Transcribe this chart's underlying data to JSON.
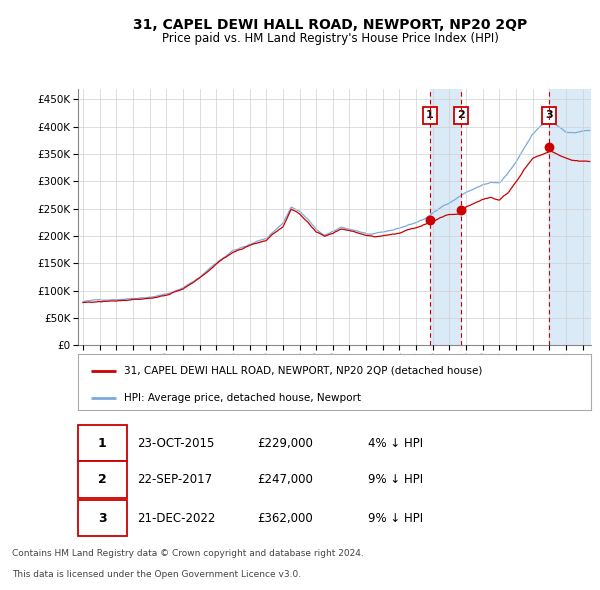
{
  "title": "31, CAPEL DEWI HALL ROAD, NEWPORT, NP20 2QP",
  "subtitle": "Price paid vs. HM Land Registry's House Price Index (HPI)",
  "legend_line1": "31, CAPEL DEWI HALL ROAD, NEWPORT, NP20 2QP (detached house)",
  "legend_line2": "HPI: Average price, detached house, Newport",
  "footer_line1": "Contains HM Land Registry data © Crown copyright and database right 2024.",
  "footer_line2": "This data is licensed under the Open Government Licence v3.0.",
  "transactions": [
    {
      "id": 1,
      "date": "23-OCT-2015",
      "price": 229000,
      "pct": "4% ↓ HPI",
      "x_year": 2015.81
    },
    {
      "id": 2,
      "date": "22-SEP-2017",
      "price": 247000,
      "pct": "9% ↓ HPI",
      "x_year": 2017.72
    },
    {
      "id": 3,
      "date": "21-DEC-2022",
      "price": 362000,
      "pct": "9% ↓ HPI",
      "x_year": 2022.97
    }
  ],
  "hpi_color": "#7aabdc",
  "price_color": "#cc0000",
  "background_color": "#ffffff",
  "grid_color": "#d0d0d0",
  "highlight_color": "#daeaf7",
  "vline_color": "#cc0000",
  "ylim": [
    0,
    470000
  ],
  "xlim_start": 1994.7,
  "xlim_end": 2025.5,
  "yticks": [
    0,
    50000,
    100000,
    150000,
    200000,
    250000,
    300000,
    350000,
    400000,
    450000
  ],
  "xticks": [
    1995,
    1996,
    1997,
    1998,
    1999,
    2000,
    2001,
    2002,
    2003,
    2004,
    2005,
    2006,
    2007,
    2008,
    2009,
    2010,
    2011,
    2012,
    2013,
    2014,
    2015,
    2016,
    2017,
    2018,
    2019,
    2020,
    2021,
    2022,
    2023,
    2024,
    2025
  ]
}
